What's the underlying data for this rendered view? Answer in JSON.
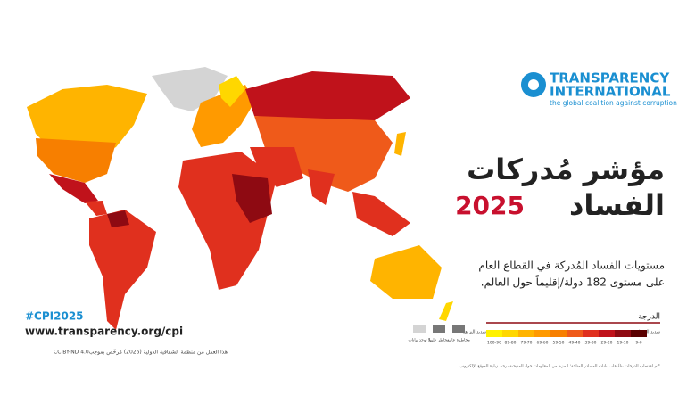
{
  "logo": {
    "name1": "TRANSPARENCY",
    "name2": "INTERNATIONAL",
    "tagline": "the global coalition against corruption"
  },
  "title": {
    "line1": "مؤشر مُدركات",
    "line2": "الفساد",
    "year": "2025"
  },
  "subtitle": {
    "line1": "مستويات الفساد المُدركة في القطاع العام",
    "line2": "على مستوى 182 دولة/إقليماً حول العالم."
  },
  "hashtag": "#CPI2025",
  "url": "www.transparency.org/cpi",
  "license": {
    "code": "CC BY-ND 4.0",
    "text": "هذا العمل من منظمة الشفافية الدولية (2026) مُرخّص بموجب"
  },
  "legend": {
    "title": "الدرجة",
    "high": "شديد الفساد",
    "low": "شديد النزاهة",
    "items": [
      {
        "label": "100-90",
        "color": "#fff200"
      },
      {
        "label": "89-80",
        "color": "#ffd700"
      },
      {
        "label": "79-70",
        "color": "#ffb400"
      },
      {
        "label": "69-60",
        "color": "#ff9a00"
      },
      {
        "label": "59-50",
        "color": "#f77f00"
      },
      {
        "label": "49-40",
        "color": "#ef5a1a"
      },
      {
        "label": "39-30",
        "color": "#e0301e"
      },
      {
        "label": "29-20",
        "color": "#c0121b"
      },
      {
        "label": "19-10",
        "color": "#8e0a12"
      },
      {
        "label": "9-0",
        "color": "#5a0000"
      }
    ],
    "extra": [
      "لا توجد بيانات",
      "مخاطر عليها",
      "مخاطرة عالية"
    ]
  },
  "footnote": "*تم احتساب الدرجات بناءً على بيانات المصادر المتاحة؛ للمزيد من المعلومات حول المنهجية يرجى زيارة الموقع الإلكتروني."
}
